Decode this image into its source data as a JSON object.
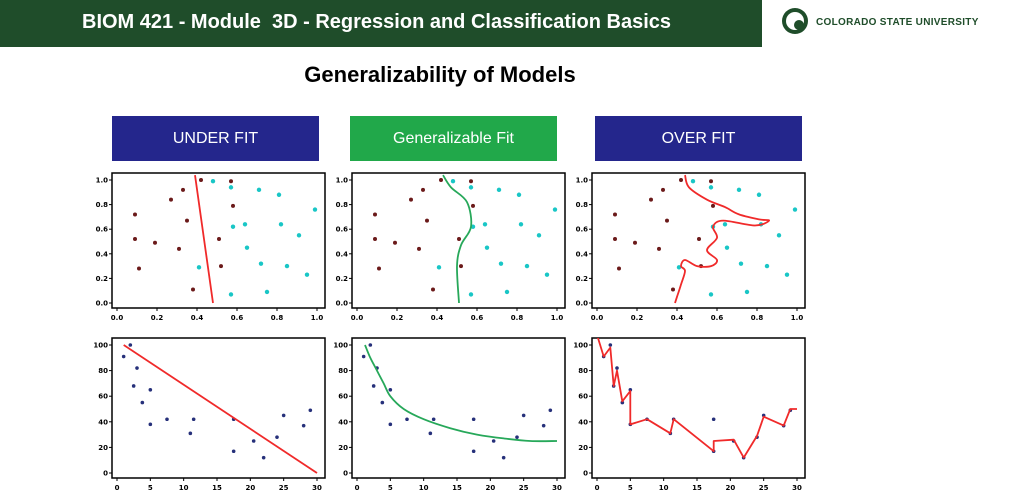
{
  "header": {
    "course_title": "BIOM 421 - Module  3D - Regression and Classification Basics",
    "university": "COLORADO STATE UNIVERSITY"
  },
  "slide": {
    "title": "Generalizability of Models"
  },
  "labels": {
    "under": "UNDER FIT",
    "generalizable": "Generalizable Fit",
    "over": "OVER FIT"
  },
  "colors": {
    "header_bg": "#1f4d2a",
    "label_blue": "#24268c",
    "label_green": "#21a84a",
    "class_a": "#6b1a1a",
    "class_b": "#19c6c6",
    "reg_points": "#26307a",
    "fit_red": "#f02a2a",
    "fit_green": "#27a85a"
  },
  "chart_data": [
    {
      "type": "scatter",
      "panel": "classification",
      "xlim": [
        0,
        1
      ],
      "ylim": [
        0,
        1
      ],
      "xticks": [
        "0.0",
        "0.2",
        "0.4",
        "0.6",
        "0.8",
        "1.0"
      ],
      "yticks": [
        "0.0",
        "0.2",
        "0.4",
        "0.6",
        "0.8",
        "1.0"
      ],
      "series": [
        {
          "points": [
            [
              0.33,
              0.92
            ],
            [
              0.42,
              1.0
            ],
            [
              0.09,
              0.72
            ],
            [
              0.27,
              0.84
            ],
            [
              0.35,
              0.67
            ],
            [
              0.58,
              0.79
            ],
            [
              0.51,
              0.52
            ],
            [
              0.09,
              0.52
            ],
            [
              0.19,
              0.49
            ],
            [
              0.31,
              0.44
            ],
            [
              0.52,
              0.3
            ],
            [
              0.38,
              0.11
            ],
            [
              0.11,
              0.28
            ],
            [
              0.57,
              0.99
            ]
          ]
        },
        {
          "points": [
            [
              0.48,
              0.99
            ],
            [
              0.57,
              0.94
            ],
            [
              0.71,
              0.92
            ],
            [
              0.81,
              0.88
            ],
            [
              0.99,
              0.76
            ],
            [
              0.64,
              0.64
            ],
            [
              0.82,
              0.64
            ],
            [
              0.58,
              0.62
            ],
            [
              0.91,
              0.55
            ],
            [
              0.65,
              0.45
            ],
            [
              0.41,
              0.29
            ],
            [
              0.72,
              0.32
            ],
            [
              0.85,
              0.3
            ],
            [
              0.95,
              0.23
            ],
            [
              0.57,
              0.07
            ],
            [
              0.75,
              0.09
            ]
          ]
        }
      ],
      "fits": {
        "under": [
          [
            0.39,
            1.04
          ],
          [
            0.48,
            0.0
          ]
        ],
        "generalizable": [
          [
            0.43,
            1.04
          ],
          [
            0.47,
            0.94
          ],
          [
            0.55,
            0.82
          ],
          [
            0.57,
            0.62
          ],
          [
            0.52,
            0.47
          ],
          [
            0.5,
            0.3
          ],
          [
            0.51,
            0.0
          ]
        ],
        "over": [
          [
            0.44,
            1.04
          ],
          [
            0.46,
            0.94
          ],
          [
            0.55,
            0.84
          ],
          [
            0.64,
            0.78
          ],
          [
            0.71,
            0.72
          ],
          [
            0.81,
            0.68
          ],
          [
            0.86,
            0.67
          ],
          [
            0.79,
            0.63
          ],
          [
            0.63,
            0.67
          ],
          [
            0.58,
            0.62
          ],
          [
            0.6,
            0.53
          ],
          [
            0.55,
            0.43
          ],
          [
            0.6,
            0.35
          ],
          [
            0.57,
            0.3
          ],
          [
            0.5,
            0.3
          ],
          [
            0.44,
            0.35
          ],
          [
            0.42,
            0.3
          ],
          [
            0.44,
            0.26
          ],
          [
            0.42,
            0.15
          ],
          [
            0.4,
            0.05
          ],
          [
            0.39,
            0.0
          ]
        ]
      }
    },
    {
      "type": "scatter",
      "panel": "regression",
      "xlim": [
        0,
        30
      ],
      "ylim": [
        0,
        100
      ],
      "xticks": [
        "0",
        "5",
        "10",
        "15",
        "20",
        "25",
        "30"
      ],
      "yticks": [
        "0",
        "20",
        "40",
        "60",
        "80",
        "100"
      ],
      "points": [
        [
          1,
          91
        ],
        [
          2,
          100
        ],
        [
          2.5,
          68
        ],
        [
          3,
          82
        ],
        [
          3.8,
          55
        ],
        [
          5,
          65
        ],
        [
          5,
          38
        ],
        [
          7.5,
          42
        ],
        [
          11.5,
          42
        ],
        [
          11,
          31
        ],
        [
          17.5,
          42
        ],
        [
          17.5,
          17
        ],
        [
          20.5,
          25
        ],
        [
          22,
          12
        ],
        [
          24,
          28
        ],
        [
          25,
          45
        ],
        [
          28,
          37
        ],
        [
          29,
          49
        ]
      ],
      "fits": {
        "under": [
          [
            1,
            100
          ],
          [
            30,
            0
          ]
        ],
        "generalizable": [
          [
            1.2,
            100
          ],
          [
            2,
            90
          ],
          [
            3,
            80
          ],
          [
            4,
            70
          ],
          [
            5,
            60
          ],
          [
            7,
            50
          ],
          [
            10,
            42
          ],
          [
            14,
            35
          ],
          [
            18,
            30
          ],
          [
            22,
            27
          ],
          [
            26,
            25
          ],
          [
            30,
            25
          ]
        ],
        "over": [
          [
            0,
            108
          ],
          [
            1,
            91
          ],
          [
            2,
            98
          ],
          [
            2.5,
            68
          ],
          [
            3,
            80
          ],
          [
            3.8,
            56
          ],
          [
            5,
            64
          ],
          [
            5,
            38
          ],
          [
            7.5,
            42
          ],
          [
            11,
            31
          ],
          [
            11.5,
            42
          ],
          [
            17.5,
            17
          ],
          [
            17.5,
            25
          ],
          [
            20.5,
            26
          ],
          [
            22,
            12
          ],
          [
            24,
            29
          ],
          [
            25,
            44
          ],
          [
            28,
            37
          ],
          [
            29,
            50
          ],
          [
            30,
            50
          ]
        ]
      }
    }
  ]
}
